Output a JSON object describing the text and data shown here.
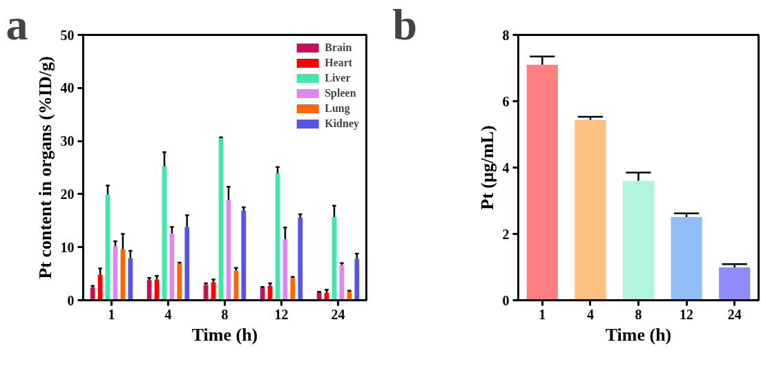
{
  "chart_data": [
    {
      "type": "bar",
      "xlabel": "Time (h)",
      "ylabel": "Pt content in organs (%ID/g)",
      "annotations": [
        "a"
      ],
      "categories": [
        "1",
        "4",
        "8",
        "12",
        "24"
      ],
      "series": [
        {
          "name": "Brain",
          "color": "#c8105a",
          "values": [
            2.4,
            3.8,
            2.9,
            2.4,
            1.5
          ],
          "errors": [
            [
              2.4,
              2.7
            ],
            [
              3.8,
              4.2
            ],
            [
              2.9,
              3.2
            ],
            [
              2.4,
              2.5
            ],
            [
              1.5,
              1.6
            ]
          ]
        },
        {
          "name": "Heart",
          "color": "#ff0000",
          "values": [
            4.8,
            3.9,
            3.4,
            2.7,
            1.4
          ],
          "errors": [
            [
              4.8,
              6.0
            ],
            [
              3.9,
              4.6
            ],
            [
              3.4,
              3.9
            ],
            [
              2.7,
              3.2
            ],
            [
              1.4,
              2.0
            ]
          ]
        },
        {
          "name": "Liver",
          "color": "#3ee8a8",
          "values": [
            19.9,
            25.2,
            30.6,
            23.9,
            15.7
          ],
          "errors": [
            [
              19.9,
              21.6
            ],
            [
              25.2,
              27.9
            ],
            [
              30.6,
              30.7
            ],
            [
              23.9,
              25.1
            ],
            [
              15.7,
              17.8
            ]
          ]
        },
        {
          "name": "Spleen",
          "color": "#dd88ee",
          "values": [
            10.2,
            12.6,
            18.9,
            11.5,
            6.6
          ],
          "errors": [
            [
              10.2,
              11.1
            ],
            [
              12.6,
              13.8
            ],
            [
              18.9,
              21.4
            ],
            [
              11.5,
              13.7
            ],
            [
              6.6,
              7.0
            ]
          ]
        },
        {
          "name": "Lung",
          "color": "#ff6600",
          "values": [
            9.6,
            6.9,
            5.6,
            4.2,
            1.7
          ],
          "errors": [
            [
              9.6,
              12.5
            ],
            [
              6.9,
              7.1
            ],
            [
              5.6,
              6.1
            ],
            [
              4.2,
              4.4
            ],
            [
              1.7,
              1.8
            ]
          ]
        },
        {
          "name": "Kidney",
          "color": "#5555ee",
          "values": [
            7.9,
            13.8,
            16.9,
            15.6,
            7.8
          ],
          "errors": [
            [
              7.9,
              9.3
            ],
            [
              13.8,
              16.0
            ],
            [
              16.9,
              17.5
            ],
            [
              15.6,
              16.2
            ],
            [
              7.8,
              8.8
            ]
          ]
        }
      ],
      "ylim": [
        0,
        50
      ],
      "yticks": [
        0,
        10,
        20,
        30,
        40,
        50
      ],
      "legend": "top right",
      "grid": false
    },
    {
      "type": "bar",
      "xlabel": "Time (h)",
      "ylabel": "Pt (μg/mL)",
      "annotations": [
        "b"
      ],
      "categories": [
        "1",
        "4",
        "8",
        "12",
        "24"
      ],
      "values": [
        7.1,
        5.44,
        3.6,
        2.51,
        0.99
      ],
      "errors": [
        [
          7.1,
          7.35
        ],
        [
          5.44,
          5.53
        ],
        [
          3.6,
          3.85
        ],
        [
          2.51,
          2.62
        ],
        [
          0.99,
          1.09
        ]
      ],
      "colors": [
        "#fe7f7f",
        "#fec07f",
        "#b3f5dc",
        "#8fbef7",
        "#8c8cfb"
      ],
      "ylim": [
        0,
        8
      ],
      "yticks": [
        0,
        2,
        4,
        6,
        8
      ],
      "grid": false
    }
  ]
}
